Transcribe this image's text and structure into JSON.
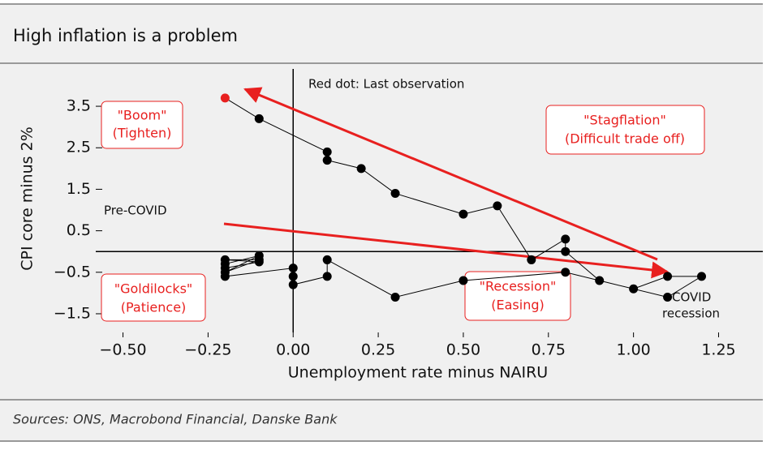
{
  "chart_data": {
    "type": "line",
    "title": "High inflation is a problem",
    "x_label": "Unemployment rate minus NAIRU",
    "y_label": "CPI core minus 2%",
    "source": "Sources: ONS, Macrobond Financial, Danske Bank",
    "note": "Red dot: Last observation",
    "pre_covid": "Pre-COVID",
    "covid": [
      "COVID",
      "recession"
    ],
    "quadrants": {
      "boom": [
        "\"Boom\"",
        "(Tighten)"
      ],
      "stagflation": [
        "\"Stagflation\"",
        "(Difficult trade off)"
      ],
      "goldilocks": [
        "\"Goldilocks\"",
        "(Patience)"
      ],
      "recession": [
        "\"Recession\"",
        "(Easing)"
      ]
    },
    "x": [
      -0.2,
      -0.1,
      -0.2,
      -0.1,
      -0.2,
      -0.1,
      -0.2,
      -0.2,
      0.0,
      0.0,
      0.0,
      0.1,
      0.1,
      0.3,
      0.5,
      0.8,
      1.1,
      1.2,
      1.1,
      1.0,
      0.9,
      0.8,
      0.8,
      0.7,
      0.6,
      0.5,
      0.3,
      0.2,
      0.1,
      0.1,
      -0.1,
      -0.2
    ],
    "values": [
      -0.3,
      -0.1,
      -0.5,
      -0.2,
      -0.2,
      -0.25,
      -0.4,
      -0.6,
      -0.4,
      -0.6,
      -0.8,
      -0.6,
      -0.2,
      -1.1,
      -0.7,
      -0.5,
      -1.1,
      -0.6,
      -0.6,
      -0.9,
      -0.7,
      0.0,
      0.3,
      -0.2,
      1.1,
      0.9,
      1.4,
      2.0,
      2.2,
      2.4,
      3.2,
      3.7
    ],
    "color": "#000000",
    "last_color": "#e8201f",
    "xlim": [
      -0.58,
      1.38
    ],
    "ylim": [
      -1.95,
      4.4
    ],
    "xticks": [
      {
        "value": -0.5,
        "label": "−0.50"
      },
      {
        "value": -0.25,
        "label": "−0.25"
      },
      {
        "value": 0,
        "label": "0.00"
      },
      {
        "value": 0.25,
        "label": "0.25"
      },
      {
        "value": 0.5,
        "label": "0.50"
      },
      {
        "value": 0.75,
        "label": "0.75"
      },
      {
        "value": 1,
        "label": "1.00"
      },
      {
        "value": 1.25,
        "label": "1.25"
      }
    ],
    "yticks": [
      {
        "value": -1.5,
        "label": "−1.5"
      },
      {
        "value": -0.5,
        "label": "−0.5"
      },
      0.5,
      1.5,
      2.5,
      3.5
    ]
  }
}
